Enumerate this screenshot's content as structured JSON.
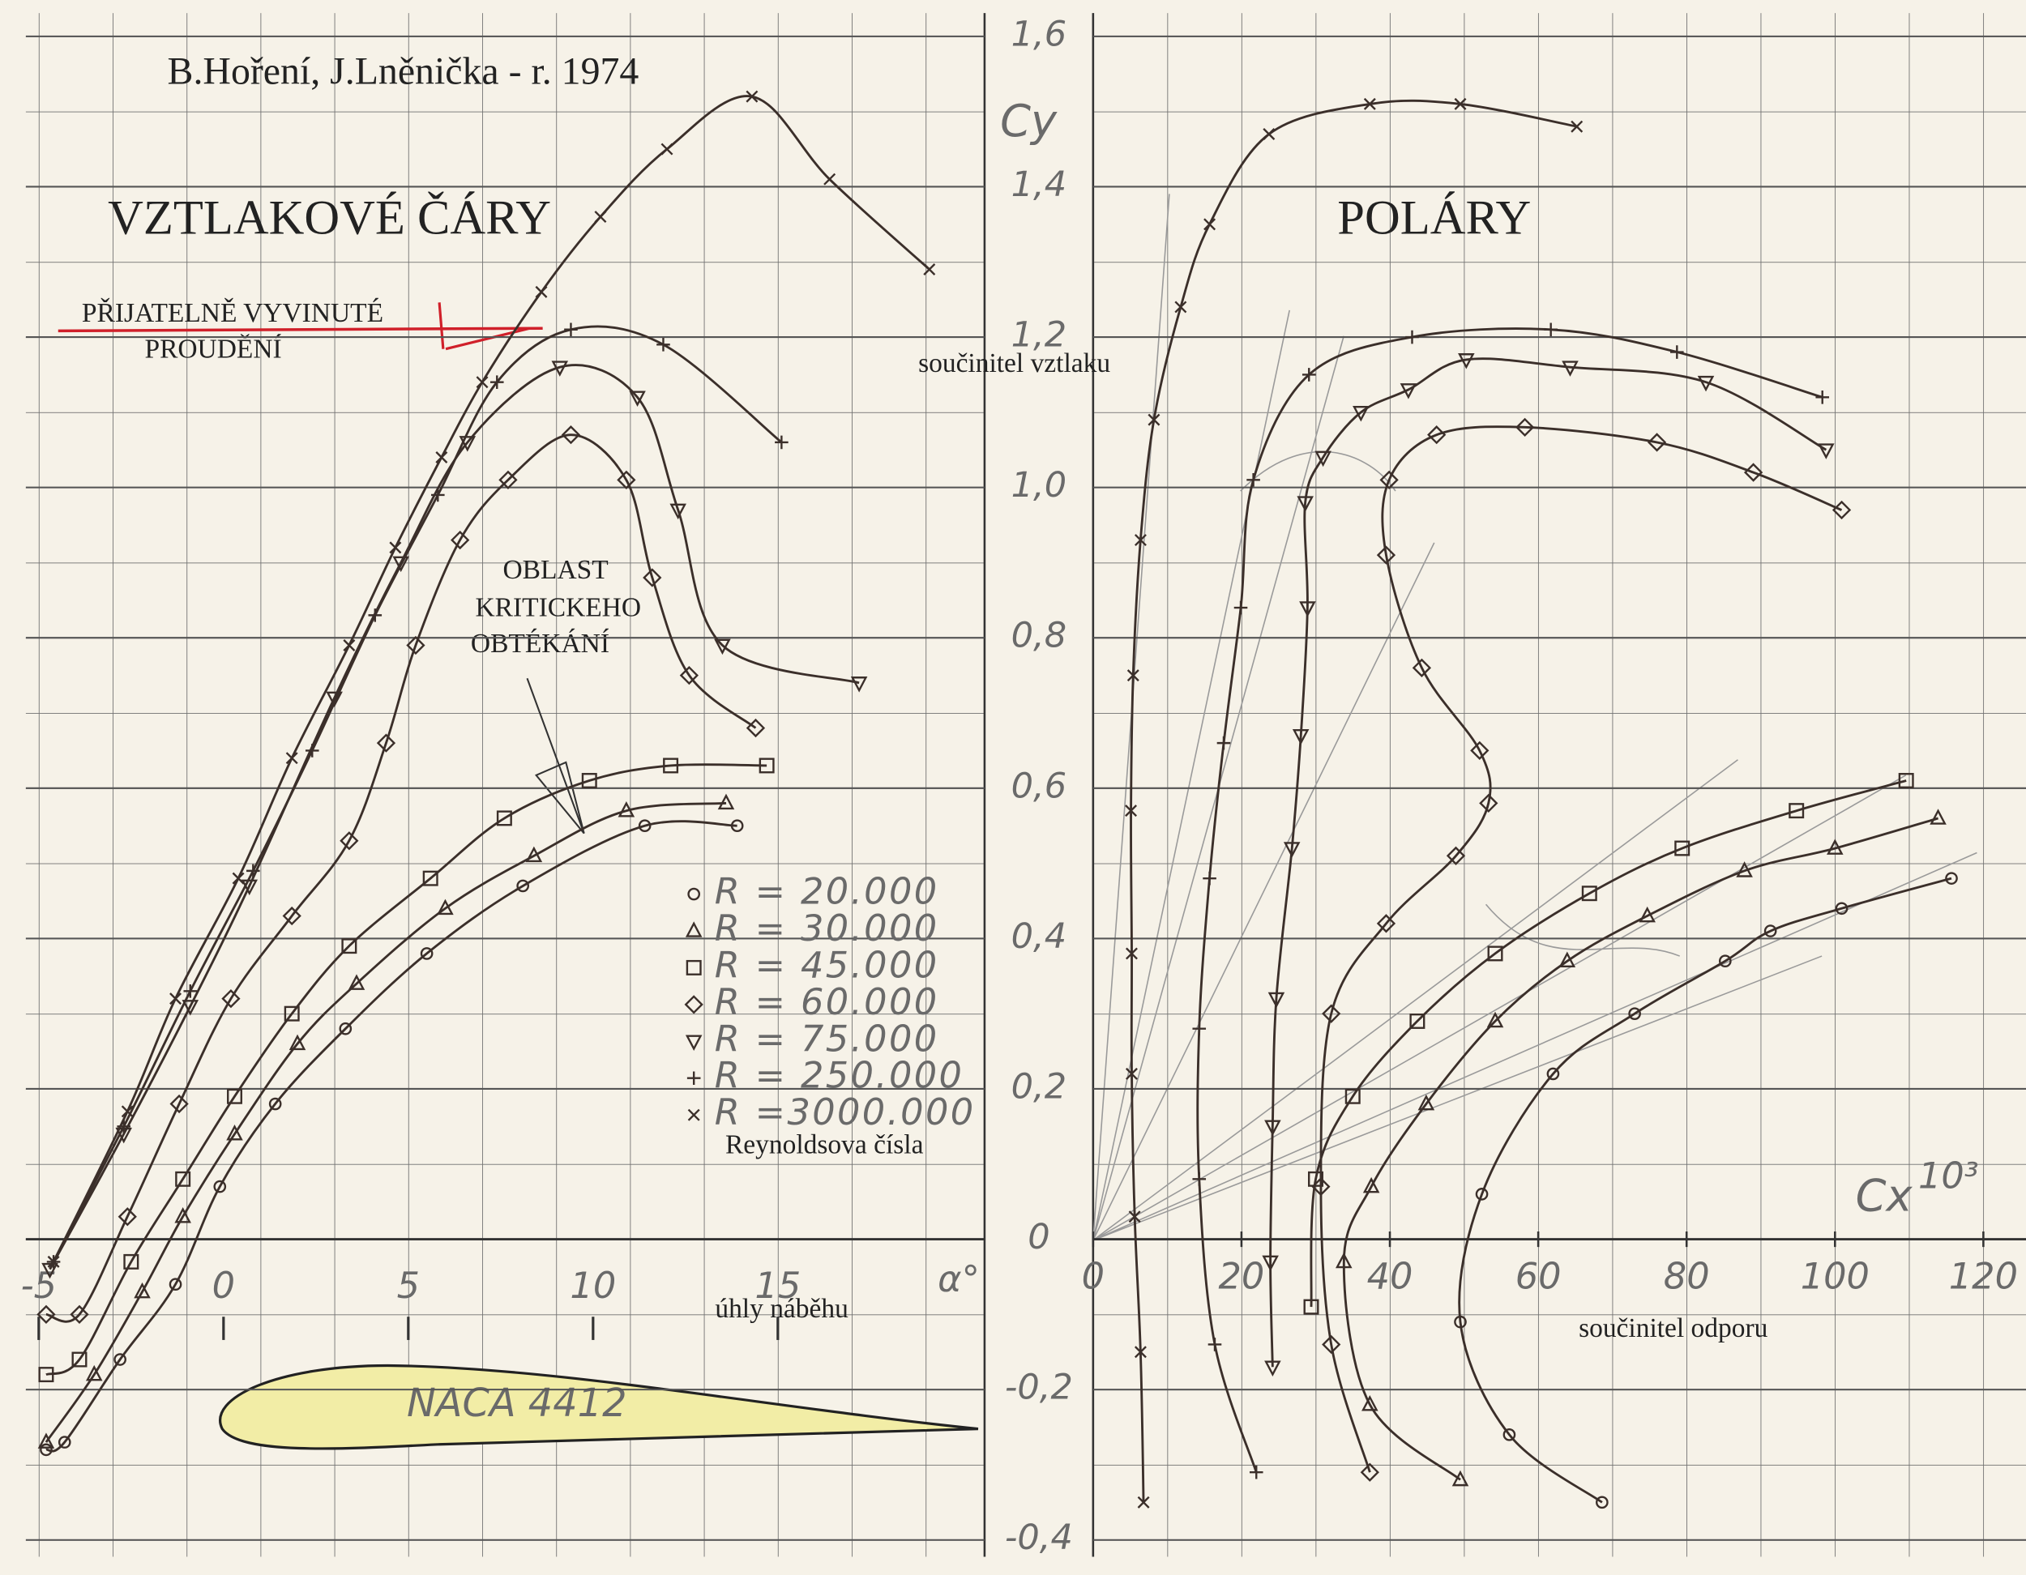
{
  "chart_data": [
    {
      "type": "line",
      "title": "VZTLAKOVÉ ČÁRY",
      "author": "B.Hoření, J.Lněnička - r. 1974",
      "note_flow": [
        "PŘIJATELNĚ VYVINUTÉ",
        "PROUDĚNÍ"
      ],
      "note_critical": [
        "OBLAST",
        "KRITICKEHO",
        "OBTÉKÁNÍ"
      ],
      "airfoil": "NACA 4412",
      "legend_title": "Reynoldsova čísla",
      "x_label": "úhly náběhu",
      "x_symbol": "α°",
      "xlim": [
        -5,
        20
      ],
      "xticks": [
        -5,
        0,
        5,
        10,
        15
      ],
      "ylim": [
        -0.4,
        1.6
      ],
      "yticks": [
        {
          "value": -0.4,
          "label": "-0,4"
        },
        {
          "value": -0.2,
          "label": "-0,2"
        },
        0,
        {
          "value": 0.2,
          "label": "0,2"
        },
        {
          "value": 0.4,
          "label": "0,4"
        },
        {
          "value": 0.6,
          "label": "0,6"
        },
        {
          "value": 0.8,
          "label": "0,8"
        },
        {
          "value": 1.0,
          "label": "1,0"
        },
        {
          "value": 1.2,
          "label": "1,2"
        },
        {
          "value": 1.4,
          "label": "1,4"
        },
        {
          "value": 1.6,
          "label": "1,6"
        }
      ],
      "series": [
        {
          "name": "R = 20.000",
          "marker": "circle",
          "color": "#3b2f2a",
          "x": [
            -4.8,
            -4.3,
            -2.8,
            -1.3,
            -0.1,
            1.4,
            3.3,
            5.5,
            8.1,
            11.4,
            13.9
          ],
          "values": [
            -0.28,
            -0.27,
            -0.16,
            -0.06,
            0.07,
            0.18,
            0.28,
            0.38,
            0.47,
            0.55,
            0.55
          ]
        },
        {
          "name": "R = 30.000",
          "marker": "triangle",
          "color": "#3b2f2a",
          "x": [
            -4.8,
            -3.5,
            -2.2,
            -1.1,
            0.3,
            2.0,
            3.6,
            6.0,
            8.4,
            10.9,
            13.6
          ],
          "values": [
            -0.27,
            -0.18,
            -0.07,
            0.03,
            0.14,
            0.26,
            0.34,
            0.44,
            0.51,
            0.57,
            0.58
          ]
        },
        {
          "name": "R = 45.000",
          "marker": "square",
          "color": "#3b2f2a",
          "x": [
            -4.8,
            -3.9,
            -2.5,
            -1.1,
            0.3,
            1.85,
            3.4,
            5.6,
            7.6,
            9.9,
            12.1,
            14.7
          ],
          "values": [
            -0.18,
            -0.16,
            -0.03,
            0.08,
            0.19,
            0.3,
            0.39,
            0.48,
            0.56,
            0.61,
            0.63,
            0.63
          ]
        },
        {
          "name": "R = 60.000",
          "marker": "diamond",
          "color": "#3b2f2a",
          "x": [
            -4.8,
            -3.9,
            -2.6,
            -1.2,
            0.2,
            1.85,
            3.4,
            4.4,
            5.2,
            6.4,
            7.7,
            9.4,
            10.9,
            11.6,
            12.6,
            14.4
          ],
          "values": [
            -0.1,
            -0.1,
            0.03,
            0.18,
            0.32,
            0.43,
            0.53,
            0.66,
            0.79,
            0.93,
            1.01,
            1.07,
            1.01,
            0.88,
            0.75,
            0.68
          ]
        },
        {
          "name": "R = 75.000",
          "marker": "triangle-down",
          "color": "#3b2f2a",
          "x": [
            -4.7,
            -2.7,
            -0.9,
            0.7,
            3.0,
            4.8,
            6.6,
            9.1,
            11.2,
            12.3,
            13.5,
            17.2
          ],
          "values": [
            -0.04,
            0.14,
            0.31,
            0.47,
            0.72,
            0.9,
            1.06,
            1.16,
            1.12,
            0.97,
            0.79,
            0.74
          ]
        },
        {
          "name": "R = 250.000",
          "marker": "plus",
          "color": "#3b2f2a",
          "x": [
            -4.6,
            -2.7,
            -0.9,
            0.8,
            2.4,
            4.1,
            5.8,
            7.4,
            9.4,
            11.9,
            15.1
          ],
          "values": [
            -0.03,
            0.15,
            0.33,
            0.49,
            0.65,
            0.83,
            0.99,
            1.14,
            1.21,
            1.19,
            1.06
          ]
        },
        {
          "name": "R =3000.000",
          "marker": "cross",
          "color": "#3b2f2a",
          "x": [
            -4.6,
            -2.6,
            -1.3,
            0.4,
            1.85,
            3.4,
            4.65,
            5.9,
            7.0,
            8.6,
            10.2,
            12.0,
            14.3,
            16.4,
            19.1
          ],
          "values": [
            -0.03,
            0.17,
            0.32,
            0.48,
            0.64,
            0.79,
            0.92,
            1.04,
            1.14,
            1.26,
            1.36,
            1.45,
            1.52,
            1.41,
            1.29
          ]
        }
      ]
    },
    {
      "type": "line",
      "title": "POLÁRY",
      "y_symbol": "Cy",
      "y_label": "součinitel vztlaku",
      "x_label": "součinitel odporu",
      "x_symbol": "Cx",
      "x_factor": "10³",
      "xlim": [
        0,
        120
      ],
      "xticks": [
        0,
        20,
        40,
        60,
        80,
        100,
        120
      ],
      "ylim": [
        -0.4,
        1.6
      ],
      "series": [
        {
          "marker": "circle",
          "color": "#3b2f2a",
          "x": [
            68.6,
            56.1,
            49.5,
            52.4,
            62.0,
            73.0,
            85.2,
            91.3,
            100.9,
            115.7
          ],
          "values": [
            -0.35,
            -0.26,
            -0.11,
            0.06,
            0.22,
            0.3,
            0.37,
            0.41,
            0.44,
            0.48
          ]
        },
        {
          "marker": "triangle",
          "color": "#3b2f2a",
          "x": [
            49.5,
            37.3,
            33.8,
            37.5,
            44.9,
            54.2,
            63.9,
            74.7,
            87.8,
            100.0,
            113.9
          ],
          "values": [
            -0.32,
            -0.22,
            -0.03,
            0.07,
            0.18,
            0.29,
            0.37,
            0.43,
            0.49,
            0.52,
            0.56
          ]
        },
        {
          "marker": "square",
          "color": "#3b2f2a",
          "x": [
            29.4,
            30.0,
            35.0,
            43.7,
            54.2,
            66.9,
            79.4,
            94.8,
            109.6
          ],
          "values": [
            -0.09,
            0.08,
            0.19,
            0.29,
            0.38,
            0.46,
            0.52,
            0.57,
            0.61
          ]
        },
        {
          "marker": "diamond",
          "color": "#3b2f2a",
          "x": [
            37.3,
            32.1,
            30.7,
            32.1,
            39.5,
            48.9,
            53.3,
            52.1,
            44.3,
            39.5,
            39.9,
            46.3,
            58.2,
            76.0,
            89.0,
            100.9
          ],
          "values": [
            -0.31,
            -0.14,
            0.07,
            0.3,
            0.42,
            0.51,
            0.58,
            0.65,
            0.76,
            0.91,
            1.01,
            1.07,
            1.08,
            1.06,
            1.02,
            0.97
          ]
        },
        {
          "marker": "triangle-down",
          "color": "#3b2f2a",
          "x": [
            24.2,
            23.9,
            24.2,
            24.7,
            26.8,
            28.0,
            28.9,
            28.6,
            31.0,
            36.1,
            42.5,
            50.3,
            64.3,
            82.6,
            98.8
          ],
          "values": [
            -0.17,
            -0.03,
            0.15,
            0.32,
            0.52,
            0.67,
            0.84,
            0.98,
            1.04,
            1.1,
            1.13,
            1.17,
            1.16,
            1.14,
            1.05
          ]
        },
        {
          "marker": "plus",
          "color": "#3b2f2a",
          "x": [
            22.0,
            16.4,
            14.3,
            14.3,
            15.7,
            17.6,
            19.9,
            21.6,
            29.1,
            43.0,
            61.7,
            78.7,
            98.3
          ],
          "values": [
            -0.31,
            -0.14,
            0.08,
            0.28,
            0.48,
            0.66,
            0.84,
            1.01,
            1.15,
            1.2,
            1.21,
            1.18,
            1.12
          ]
        },
        {
          "marker": "cross",
          "color": "#3b2f2a",
          "x": [
            6.8,
            6.4,
            5.6,
            5.2,
            5.2,
            5.1,
            5.4,
            6.4,
            8.2,
            11.8,
            15.7,
            23.7,
            37.3,
            49.5,
            65.2
          ],
          "values": [
            -0.35,
            -0.15,
            0.03,
            0.22,
            0.38,
            0.57,
            0.75,
            0.93,
            1.09,
            1.24,
            1.35,
            1.47,
            1.51,
            1.51,
            1.48
          ]
        }
      ]
    }
  ]
}
